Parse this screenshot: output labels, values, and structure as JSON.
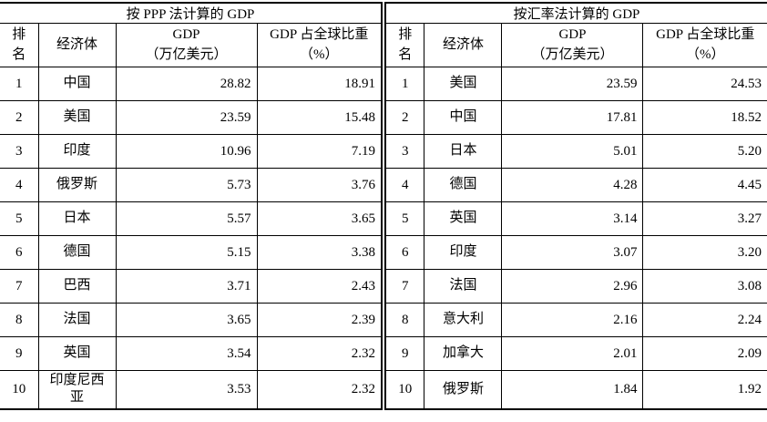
{
  "colors": {
    "border": "#000000",
    "text": "#000000",
    "background": "#ffffff"
  },
  "tables": [
    {
      "title": "按 PPP 法计算的 GDP",
      "headers": {
        "rank": [
          "排",
          "名"
        ],
        "economy": "经济体",
        "gdp": [
          "GDP",
          "（万亿美元）"
        ],
        "share": [
          "GDP 占全球比重",
          "（%）"
        ]
      },
      "rows": [
        {
          "rank": "1",
          "economy": "中国",
          "gdp": "28.82",
          "share": "18.91"
        },
        {
          "rank": "2",
          "economy": "美国",
          "gdp": "23.59",
          "share": "15.48"
        },
        {
          "rank": "3",
          "economy": "印度",
          "gdp": "10.96",
          "share": "7.19"
        },
        {
          "rank": "4",
          "economy": "俄罗斯",
          "gdp": "5.73",
          "share": "3.76"
        },
        {
          "rank": "5",
          "economy": "日本",
          "gdp": "5.57",
          "share": "3.65"
        },
        {
          "rank": "6",
          "economy": "德国",
          "gdp": "5.15",
          "share": "3.38"
        },
        {
          "rank": "7",
          "economy": "巴西",
          "gdp": "3.71",
          "share": "2.43"
        },
        {
          "rank": "8",
          "economy": "法国",
          "gdp": "3.65",
          "share": "2.39"
        },
        {
          "rank": "9",
          "economy": "英国",
          "gdp": "3.54",
          "share": "2.32"
        },
        {
          "rank": "10",
          "economy": "印度尼西亚",
          "gdp": "3.53",
          "share": "2.32"
        }
      ]
    },
    {
      "title": "按汇率法计算的 GDP",
      "headers": {
        "rank": [
          "排",
          "名"
        ],
        "economy": "经济体",
        "gdp": [
          "GDP",
          "（万亿美元）"
        ],
        "share": [
          "GDP 占全球比重",
          "（%）"
        ]
      },
      "rows": [
        {
          "rank": "1",
          "economy": "美国",
          "gdp": "23.59",
          "share": "24.53"
        },
        {
          "rank": "2",
          "economy": "中国",
          "gdp": "17.81",
          "share": "18.52"
        },
        {
          "rank": "3",
          "economy": "日本",
          "gdp": "5.01",
          "share": "5.20"
        },
        {
          "rank": "4",
          "economy": "德国",
          "gdp": "4.28",
          "share": "4.45"
        },
        {
          "rank": "5",
          "economy": "英国",
          "gdp": "3.14",
          "share": "3.27"
        },
        {
          "rank": "6",
          "economy": "印度",
          "gdp": "3.07",
          "share": "3.20"
        },
        {
          "rank": "7",
          "economy": "法国",
          "gdp": "2.96",
          "share": "3.08"
        },
        {
          "rank": "8",
          "economy": "意大利",
          "gdp": "2.16",
          "share": "2.24"
        },
        {
          "rank": "9",
          "economy": "加拿大",
          "gdp": "2.01",
          "share": "2.09"
        },
        {
          "rank": "10",
          "economy": "俄罗斯",
          "gdp": "1.84",
          "share": "1.92"
        }
      ]
    }
  ]
}
